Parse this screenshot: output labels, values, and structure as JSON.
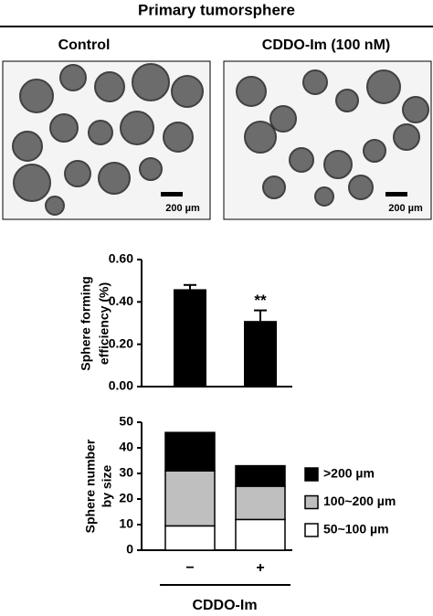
{
  "panel_title": "Primary tumorsphere",
  "images": [
    {
      "label": "Control",
      "scale_bar": "200 µm"
    },
    {
      "label": "CDDO-Im (100 nM)",
      "scale_bar": "200 µm"
    }
  ],
  "chart_data": [
    {
      "type": "bar",
      "categories": [
        null,
        null
      ],
      "values": [
        0.46,
        0.31
      ],
      "errors": [
        0.02,
        0.05
      ],
      "color": "#000000",
      "ylabel": [
        "Sphere forming",
        "efficiency (%)"
      ],
      "annotations": [
        null,
        "**"
      ],
      "ylim": [
        0,
        0.6
      ],
      "yticks": [
        {
          "value": 0,
          "label": "0.00"
        },
        {
          "value": 0.2,
          "label": "0.20"
        },
        {
          "value": 0.4,
          "label": "0.40"
        },
        {
          "value": 0.6,
          "label": "0.60"
        }
      ]
    },
    {
      "type": "stacked_bar",
      "categories": [
        "−",
        "+"
      ],
      "xlabel": "CDDO-Im",
      "ylabel": [
        "Sphere number",
        "by size"
      ],
      "series": [
        {
          "name": "50~100 µm",
          "color": "#ffffff",
          "values": [
            9.5,
            12
          ]
        },
        {
          "name": "100~200 µm",
          "color": "#bfbfbf",
          "values": [
            21.5,
            13
          ]
        },
        {
          "name": ">200 µm",
          "color": "#000000",
          "values": [
            15,
            8
          ]
        }
      ],
      "ylim": [
        0,
        50
      ],
      "yticks": [
        0,
        10,
        20,
        30,
        40,
        50
      ]
    }
  ]
}
